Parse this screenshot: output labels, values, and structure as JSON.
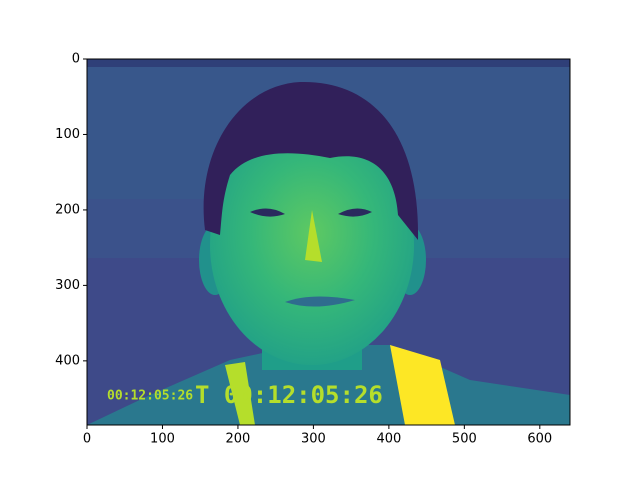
{
  "chart_data": {
    "type": "image",
    "xlim": [
      0,
      640
    ],
    "ylim": [
      485,
      0
    ],
    "xticks": [
      0,
      100,
      200,
      300,
      400,
      500,
      600
    ],
    "yticks": [
      0,
      100,
      200,
      300,
      400
    ],
    "annotations": [
      "00:12:05:26",
      "T 00:12:05:26"
    ]
  }
}
